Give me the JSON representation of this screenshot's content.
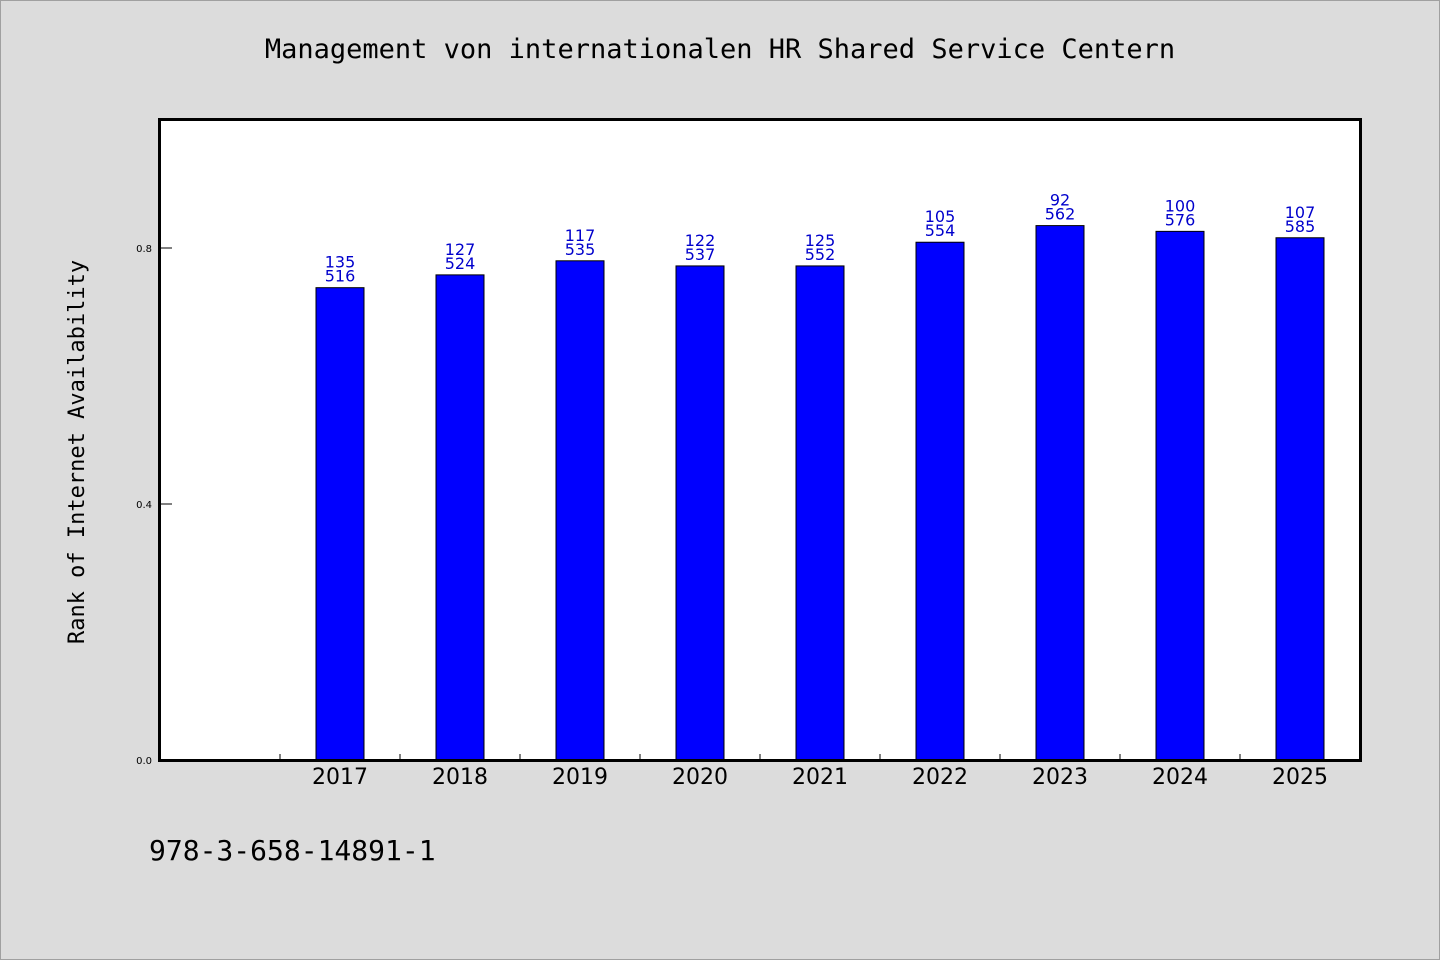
{
  "title": "Management von internationalen HR Shared Service Centern",
  "footer_text": "978-3-658-14891-1",
  "colors": {
    "bar": "#0000ff",
    "value_label": "#0000cc",
    "background": "#dcdcdc",
    "plot_background": "#ffffff"
  },
  "chart_data": {
    "type": "bar",
    "title": "Management von internationalen HR Shared Service Centern",
    "xlabel": "",
    "ylabel": "Rank of Internet Availability",
    "ylim": [
      0.0,
      1.0
    ],
    "yticks": [
      "0.0",
      "0.4",
      "0.8"
    ],
    "categories": [
      "2017",
      "2018",
      "2019",
      "2020",
      "2021",
      "2022",
      "2023",
      "2024",
      "2025"
    ],
    "values": [
      0.738,
      0.758,
      0.78,
      0.772,
      0.772,
      0.809,
      0.835,
      0.826,
      0.816
    ],
    "labels_top": [
      "135",
      "127",
      "117",
      "122",
      "125",
      "105",
      "92",
      "100",
      "107"
    ],
    "labels_bottom": [
      "516",
      "524",
      "535",
      "537",
      "552",
      "554",
      "562",
      "576",
      "585"
    ],
    "grid": false,
    "legend": "none"
  }
}
